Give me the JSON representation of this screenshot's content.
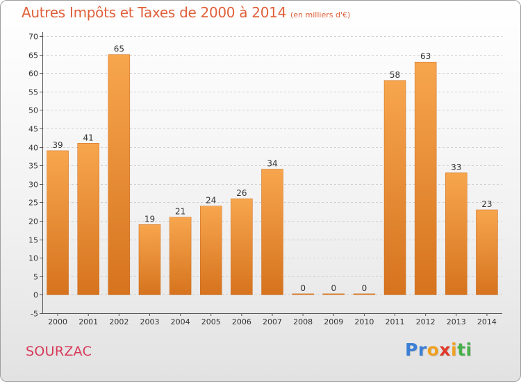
{
  "header": {
    "title": "Autres Impôts et Taxes de 2000 à 2014",
    "unit": "(en milliers d'€)"
  },
  "footer": {
    "place": "SOURZAC",
    "logo_letters": [
      {
        "ch": "P",
        "color": "#3a7fd5"
      },
      {
        "ch": "r",
        "color": "#3a7fd5"
      },
      {
        "ch": "o",
        "color": "#f0a020"
      },
      {
        "ch": "x",
        "color": "#e03a2a"
      },
      {
        "ch": "i",
        "color": "#f0a020"
      },
      {
        "ch": "t",
        "color": "#49b049"
      },
      {
        "ch": "i",
        "color": "#49b049"
      }
    ]
  },
  "colors": {
    "bar_top": "#f7a64e",
    "bar_bottom": "#d6731e",
    "grid": "#cfcfcf",
    "axis": "#555555"
  },
  "chart_data": {
    "type": "bar",
    "title": "Autres Impôts et Taxes de 2000 à 2014",
    "subtitle": "(en milliers d'€)",
    "xlabel": "",
    "ylabel": "",
    "categories": [
      "2000",
      "2001",
      "2002",
      "2003",
      "2004",
      "2005",
      "2006",
      "2007",
      "2008",
      "2009",
      "2010",
      "2011",
      "2012",
      "2013",
      "2014"
    ],
    "values": [
      39,
      41,
      65,
      19,
      21,
      24,
      26,
      34,
      0,
      0,
      0,
      58,
      63,
      33,
      23
    ],
    "ylim": [
      -5,
      70
    ],
    "yticks": [
      -5,
      0,
      5,
      10,
      15,
      20,
      25,
      30,
      35,
      40,
      45,
      50,
      55,
      60,
      65,
      70
    ],
    "grid": "horizontal dashed",
    "legend": "none",
    "data_labels": true
  }
}
